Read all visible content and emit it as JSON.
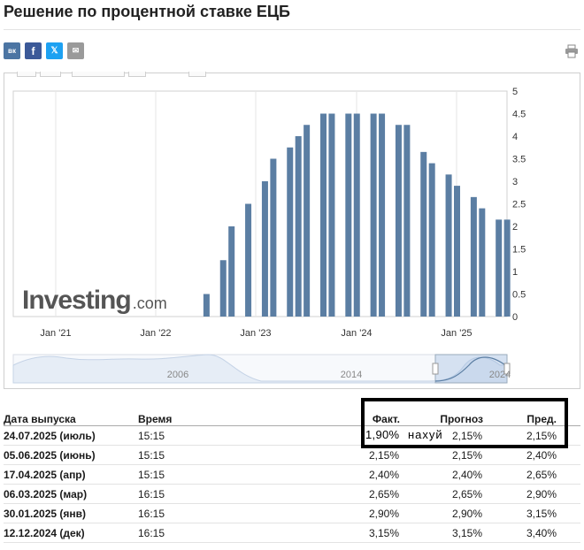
{
  "page": {
    "title": "Решение по процентной ставке ЕЦБ"
  },
  "share": {
    "vk_label": "вк",
    "fb_label": "f",
    "tw_label": "𝕏",
    "mail_label": "✉",
    "icons": [
      "vk-icon",
      "facebook-icon",
      "x-icon",
      "mail-icon",
      "print-icon"
    ]
  },
  "chart_data": {
    "type": "bar",
    "color": "#5b7ea3",
    "title": "",
    "xlabel": "",
    "ylabel": "",
    "ylim": [
      0,
      5
    ],
    "yticks": [
      "0",
      "0.5",
      "1",
      "1.5",
      "2",
      "2.5",
      "3",
      "3.5",
      "4",
      "4.5",
      "5"
    ],
    "xticks": [
      "Jan '21",
      "Jan '22",
      "Jan '23",
      "Jan '24",
      "Jan '25"
    ],
    "categories": [
      "2022-07",
      "2022-09",
      "2022-10",
      "2022-12",
      "2023-02",
      "2023-03",
      "2023-05",
      "2023-06",
      "2023-07",
      "2023-09",
      "2023-10",
      "2023-12",
      "2024-01",
      "2024-03",
      "2024-04",
      "2024-06",
      "2024-07",
      "2024-09",
      "2024-10",
      "2024-12",
      "2025-01",
      "2025-03",
      "2025-04",
      "2025-06",
      "2025-07"
    ],
    "values": [
      0.5,
      1.25,
      2.0,
      2.5,
      3.0,
      3.5,
      3.75,
      4.0,
      4.25,
      4.5,
      4.5,
      4.5,
      4.5,
      4.5,
      4.5,
      4.25,
      4.25,
      3.65,
      3.4,
      3.15,
      2.9,
      2.65,
      2.4,
      2.15,
      2.15
    ],
    "navigator": {
      "labels": [
        "2006",
        "2014",
        "2024"
      ]
    },
    "brand": "Investing",
    "brand_suffix": ".com"
  },
  "table": {
    "headers": {
      "date": "Дата выпуска",
      "time": "Время",
      "actual": "Факт.",
      "forecast": "Прогноз",
      "previous": "Пред."
    },
    "rows": [
      {
        "date": "24.07.2025 (июль)",
        "time": "15:15",
        "actual": "",
        "forecast": "2,15%",
        "previous": "2,15%"
      },
      {
        "date": "05.06.2025 (июнь)",
        "time": "15:15",
        "actual": "2,15%",
        "forecast": "2,15%",
        "previous": "2,40%"
      },
      {
        "date": "17.04.2025 (апр)",
        "time": "15:15",
        "actual": "2,40%",
        "forecast": "2,40%",
        "previous": "2,65%"
      },
      {
        "date": "06.03.2025 (мар)",
        "time": "16:15",
        "actual": "2,65%",
        "forecast": "2,65%",
        "previous": "2,90%"
      },
      {
        "date": "30.01.2025 (янв)",
        "time": "16:15",
        "actual": "2,90%",
        "forecast": "2,90%",
        "previous": "3,15%"
      },
      {
        "date": "12.12.2024 (дек)",
        "time": "16:15",
        "actual": "3,15%",
        "forecast": "3,15%",
        "previous": "3,40%"
      }
    ]
  },
  "annotation": {
    "value": "1,90%",
    "note": "нахуй"
  }
}
